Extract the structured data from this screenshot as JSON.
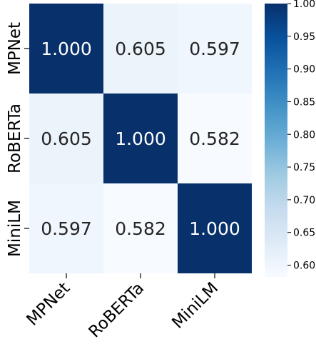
{
  "chart_data": {
    "type": "heatmap",
    "title": "",
    "xlabel": "",
    "ylabel": "",
    "x_categories": [
      "MPNet",
      "RoBERTa",
      "MiniLM"
    ],
    "y_categories": [
      "MPNet",
      "RoBERTa",
      "MiniLM"
    ],
    "values": [
      [
        1.0,
        0.605,
        0.597
      ],
      [
        0.605,
        1.0,
        0.582
      ],
      [
        0.597,
        0.582,
        1.0
      ]
    ],
    "cell_labels": [
      [
        "1.000",
        "0.605",
        "0.597"
      ],
      [
        "0.605",
        "1.000",
        "0.582"
      ],
      [
        "0.597",
        "0.582",
        "1.000"
      ]
    ],
    "colormap": "Blues",
    "colorbar": {
      "range": [
        0.582,
        1.0
      ],
      "ticks": [
        1.0,
        0.95,
        0.9,
        0.85,
        0.8,
        0.75,
        0.7,
        0.65,
        0.6
      ],
      "tick_labels": [
        "1.00",
        "0.95",
        "0.90",
        "0.85",
        "0.80",
        "0.75",
        "0.70",
        "0.65",
        "0.60"
      ]
    },
    "colors": {
      "low": "#f7fbff",
      "high": "#08306b",
      "dark_text": "#262626",
      "light_text": "#ffffff"
    },
    "grid": false
  }
}
